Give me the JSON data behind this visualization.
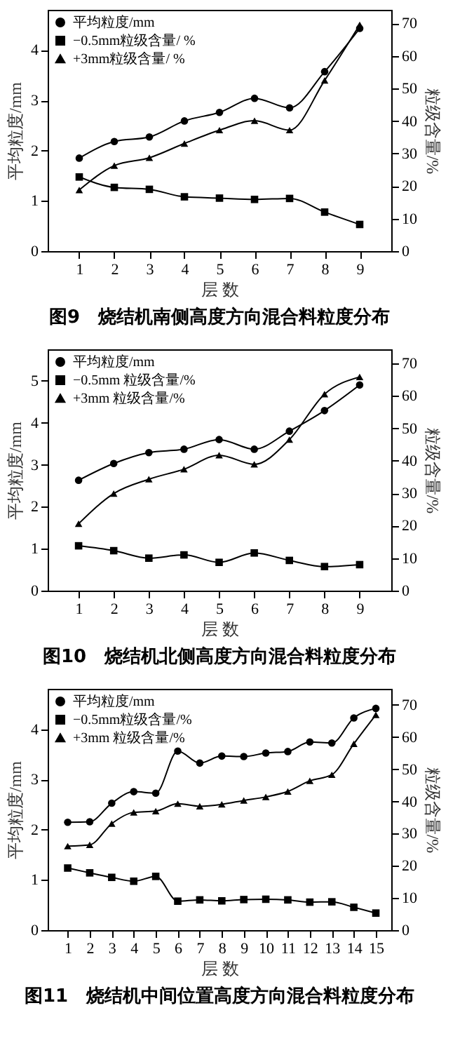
{
  "chart_data": [
    {
      "type": "line",
      "title": "图9　烧结机南侧高度方向混合料粒度分布",
      "xlabel": "层 数",
      "ylabel": "平均粒度/mm",
      "y2label": "粒级含量/%",
      "x": [
        1,
        2,
        3,
        4,
        5,
        6,
        7,
        8,
        9
      ],
      "xlim": [
        0.1,
        9.9
      ],
      "xticks": [
        1,
        2,
        3,
        4,
        5,
        6,
        7,
        8,
        9
      ],
      "ylim": [
        0,
        4.8
      ],
      "yticks": [
        0,
        1,
        2,
        3,
        4
      ],
      "y2lim": [
        0,
        74.2
      ],
      "y2ticks": [
        0,
        10,
        20,
        30,
        40,
        50,
        60,
        70
      ],
      "grid": false,
      "legend": "top left",
      "series": [
        {
          "name": "平均粒度/mm",
          "color": "#000000",
          "marker": "circle",
          "values": [
            1.85,
            2.18,
            2.27,
            2.59,
            2.76,
            3.04,
            2.85,
            3.57,
            4.43
          ]
        },
        {
          "name": "−0.5mm粒级含量/ %",
          "color": "#000000",
          "marker": "square",
          "axis": "y2",
          "values": [
            22.8,
            19.6,
            19.0,
            16.7,
            16.3,
            15.9,
            16.2,
            12.0,
            8.2
          ]
        },
        {
          "name": "+3mm粒级含量/ %",
          "color": "#000000",
          "marker": "triangle",
          "axis": "y2",
          "values": [
            18.8,
            26.3,
            28.7,
            33.1,
            37.2,
            40.1,
            37.2,
            52.5,
            69.6
          ]
        }
      ]
    },
    {
      "type": "line",
      "title": "图10　烧结机北侧高度方向混合料粒度分布",
      "xlabel": "层 数",
      "ylabel": "平均粒度/mm",
      "y2label": "粒级含量/%",
      "x": [
        1,
        2,
        3,
        4,
        5,
        6,
        7,
        8,
        9
      ],
      "xlim": [
        0.12,
        9.9
      ],
      "xticks": [
        1,
        2,
        3,
        4,
        5,
        6,
        7,
        8,
        9
      ],
      "ylim": [
        0,
        5.75
      ],
      "yticks": [
        0,
        1,
        2,
        3,
        4,
        5
      ],
      "y2lim": [
        0,
        74.3
      ],
      "y2ticks": [
        0,
        10,
        20,
        30,
        40,
        50,
        60,
        70
      ],
      "grid": false,
      "legend": "top left",
      "series": [
        {
          "name": "平均粒度/mm",
          "color": "#000000",
          "marker": "circle",
          "values": [
            2.63,
            3.03,
            3.29,
            3.37,
            3.6,
            3.37,
            3.8,
            4.29,
            4.9
          ]
        },
        {
          "name": "−0.5mm 粒级含量/%",
          "color": "#000000",
          "marker": "square",
          "axis": "y2",
          "values": [
            13.8,
            12.3,
            10.0,
            11.0,
            8.7,
            11.6,
            9.3,
            7.4,
            8.0
          ]
        },
        {
          "name": "+3mm 粒级含量/%",
          "color": "#000000",
          "marker": "triangle",
          "axis": "y2",
          "values": [
            20.6,
            29.9,
            34.3,
            37.4,
            41.7,
            38.9,
            46.5,
            60.5,
            65.8
          ]
        }
      ]
    },
    {
      "type": "line",
      "title": "图11　烧结机中间位置高度方向混合料粒度分布",
      "xlabel": "层 数",
      "ylabel": "平均粒度/mm",
      "y2label": "粒级含量/%",
      "x": [
        1,
        2,
        3,
        4,
        5,
        6,
        7,
        8,
        9,
        10,
        11,
        12,
        13,
        14,
        15
      ],
      "xlim": [
        0.09,
        15.7
      ],
      "xticks": [
        1,
        2,
        3,
        4,
        5,
        6,
        7,
        8,
        9,
        10,
        11,
        12,
        13,
        14,
        15
      ],
      "ylim": [
        0,
        4.81
      ],
      "yticks": [
        0,
        1,
        2,
        3,
        4
      ],
      "y2lim": [
        0,
        75
      ],
      "y2ticks": [
        0,
        10,
        20,
        30,
        40,
        50,
        60,
        70
      ],
      "grid": false,
      "legend": "top left",
      "series": [
        {
          "name": "平均粒度/mm",
          "color": "#000000",
          "marker": "circle",
          "values": [
            2.15,
            2.16,
            2.53,
            2.76,
            2.73,
            3.57,
            3.33,
            3.47,
            3.46,
            3.53,
            3.56,
            3.75,
            3.73,
            4.23,
            4.42
          ]
        },
        {
          "name": "−0.5mm粒级含量/%",
          "color": "#000000",
          "marker": "square",
          "axis": "y2",
          "values": [
            19.3,
            17.8,
            16.4,
            15.2,
            16.7,
            9.0,
            9.4,
            9.1,
            9.5,
            9.6,
            9.4,
            8.7,
            8.8,
            7.1,
            5.3
          ]
        },
        {
          "name": "+3mm 粒级含量/%",
          "color": "#000000",
          "marker": "triangle",
          "axis": "y2",
          "values": [
            26.1,
            26.5,
            33.1,
            36.6,
            37.0,
            39.3,
            38.5,
            39.1,
            40.3,
            41.4,
            43.1,
            46.4,
            48.3,
            57.9,
            66.9
          ]
        }
      ]
    }
  ]
}
